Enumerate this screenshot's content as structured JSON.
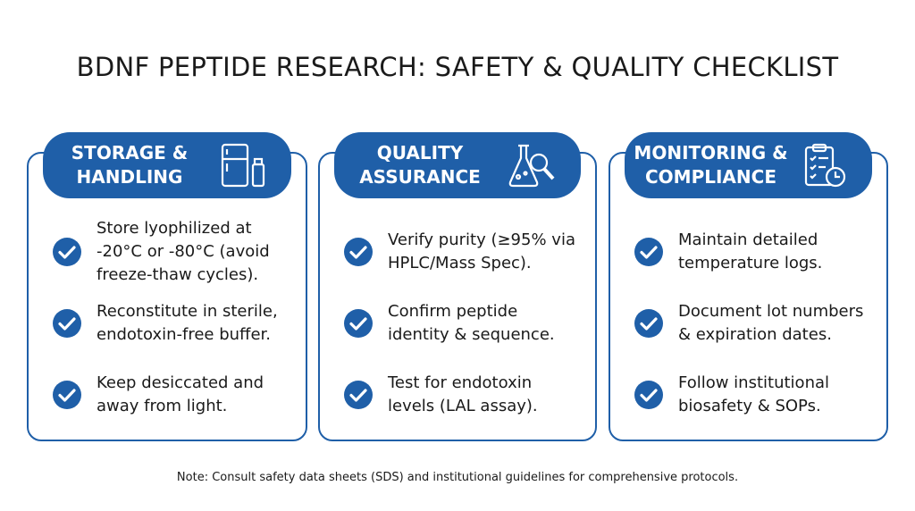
{
  "title": "BDNF PEPTIDE RESEARCH: SAFETY & QUALITY CHECKLIST",
  "cards": [
    {
      "title": [
        "STORAGE &",
        "HANDLING"
      ],
      "items": [
        "Store lyophilized at -20°C or -80°C (avoid freeze-thaw cycles).",
        "Reconstitute in sterile, endotoxin-free buffer.",
        "Keep desiccated and away from light."
      ]
    },
    {
      "title": [
        "QUALITY",
        "ASSURANCE"
      ],
      "items": [
        "Verify purity (≥95% via HPLC/Mass Spec).",
        "Confirm peptide identity & sequence.",
        "Test for endotoxin levels (LAL assay)."
      ]
    },
    {
      "title": [
        "MONITORING &",
        "COMPLIANCE"
      ],
      "items": [
        "Maintain detailed temperature logs.",
        "Document lot numbers & expiration dates.",
        "Follow institutional biosafety & SOPs."
      ]
    }
  ],
  "note": "Note: Consult safety data sheets (SDS) and institutional guidelines for comprehensive protocols."
}
